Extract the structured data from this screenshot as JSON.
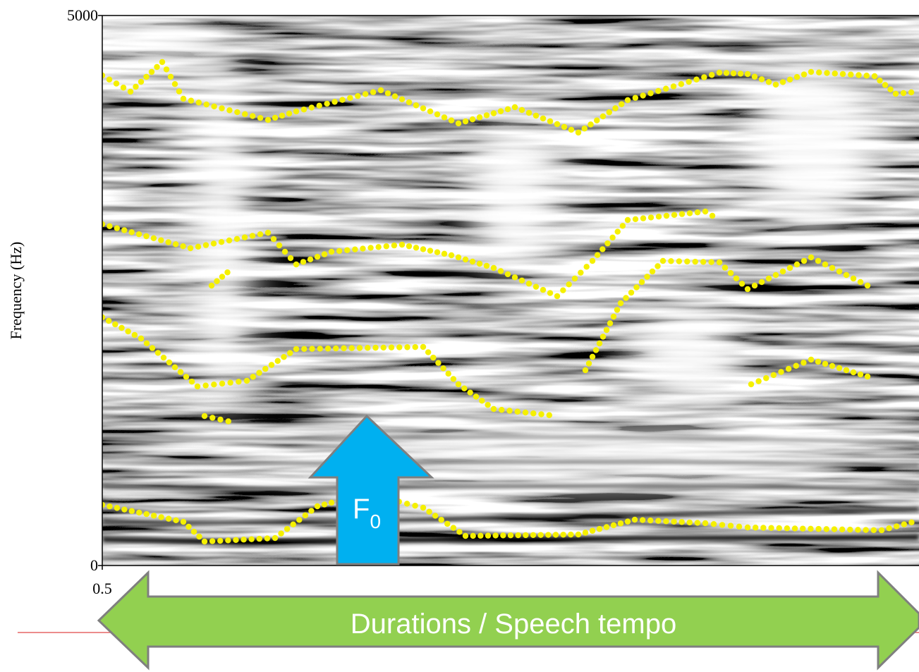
{
  "chart_data": {
    "type": "spectrogram",
    "ylabel": "Frequency (Hz)",
    "ylim": [
      0,
      5000
    ],
    "yticks": [
      0,
      5000
    ],
    "xticks": [
      0.5
    ],
    "annotations": [
      {
        "text": "F",
        "subscript": "0"
      },
      {
        "text": "Durations / Speech tempo"
      }
    ]
  }
}
